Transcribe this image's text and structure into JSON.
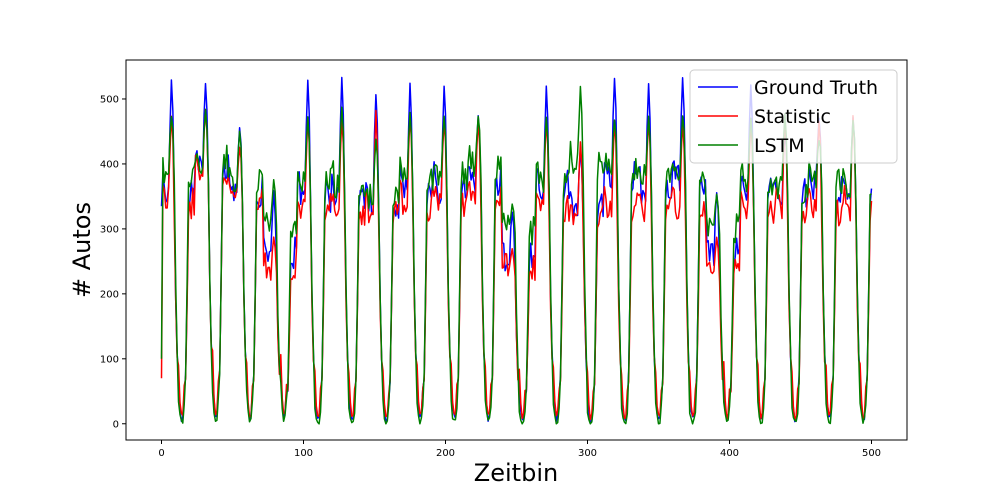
{
  "chart_data": {
    "type": "line",
    "xlabel": "Zeitbin",
    "ylabel": "# Autos",
    "xlim": [
      -25,
      525
    ],
    "ylim": [
      -25,
      560
    ],
    "xticks": [
      0,
      100,
      200,
      300,
      400,
      500
    ],
    "yticks": [
      0,
      100,
      200,
      300,
      400,
      500
    ],
    "grid": false,
    "legend_position": "top-right",
    "period": 24,
    "x_max": 500,
    "series": [
      {
        "name": "Ground Truth",
        "color": "#0000ff",
        "start_value": 335,
        "peaks": [
          530,
          520,
          455,
          355,
          530,
          530,
          510,
          520,
          520,
          470,
          330,
          515,
          420,
          535,
          520,
          530,
          360,
          520,
          455,
          475,
          470
        ],
        "plateaus": [
          355,
          400,
          360,
          260,
          350,
          350,
          340,
          360,
          360,
          380,
          250,
          360,
          330,
          380,
          360,
          380,
          260,
          360,
          350,
          360,
          360
        ],
        "troughs": [
          8,
          12,
          10,
          12,
          6,
          6,
          6,
          10,
          10,
          8,
          6,
          8,
          6,
          6,
          6,
          6,
          8,
          8,
          6,
          8,
          8
        ]
      },
      {
        "name": "Statistic",
        "color": "#ff0000",
        "start_value": 70,
        "peaks": [
          475,
          480,
          430,
          285,
          470,
          470,
          480,
          475,
          470,
          470,
          265,
          470,
          430,
          470,
          470,
          470,
          285,
          470,
          470,
          470,
          470
        ],
        "plateaus": [
          340,
          390,
          350,
          240,
          330,
          330,
          320,
          340,
          340,
          350,
          240,
          330,
          320,
          330,
          330,
          330,
          240,
          330,
          330,
          330,
          330
        ],
        "troughs": [
          12,
          15,
          13,
          15,
          10,
          10,
          10,
          12,
          12,
          12,
          10,
          12,
          10,
          10,
          10,
          10,
          12,
          12,
          10,
          12,
          12
        ]
      },
      {
        "name": "LSTM",
        "color": "#008000",
        "start_value": 100,
        "peaks": [
          475,
          480,
          450,
          375,
          470,
          490,
          440,
          475,
          470,
          470,
          335,
          470,
          515,
          470,
          470,
          470,
          355,
          470,
          480,
          440,
          470
        ],
        "plateaus": [
          390,
          400,
          370,
          310,
          370,
          370,
          350,
          380,
          380,
          400,
          300,
          370,
          400,
          390,
          380,
          390,
          300,
          370,
          360,
          380,
          370
        ],
        "troughs": [
          2,
          5,
          5,
          8,
          0,
          0,
          2,
          2,
          2,
          2,
          0,
          2,
          0,
          0,
          2,
          0,
          2,
          2,
          0,
          2,
          2
        ]
      }
    ]
  }
}
